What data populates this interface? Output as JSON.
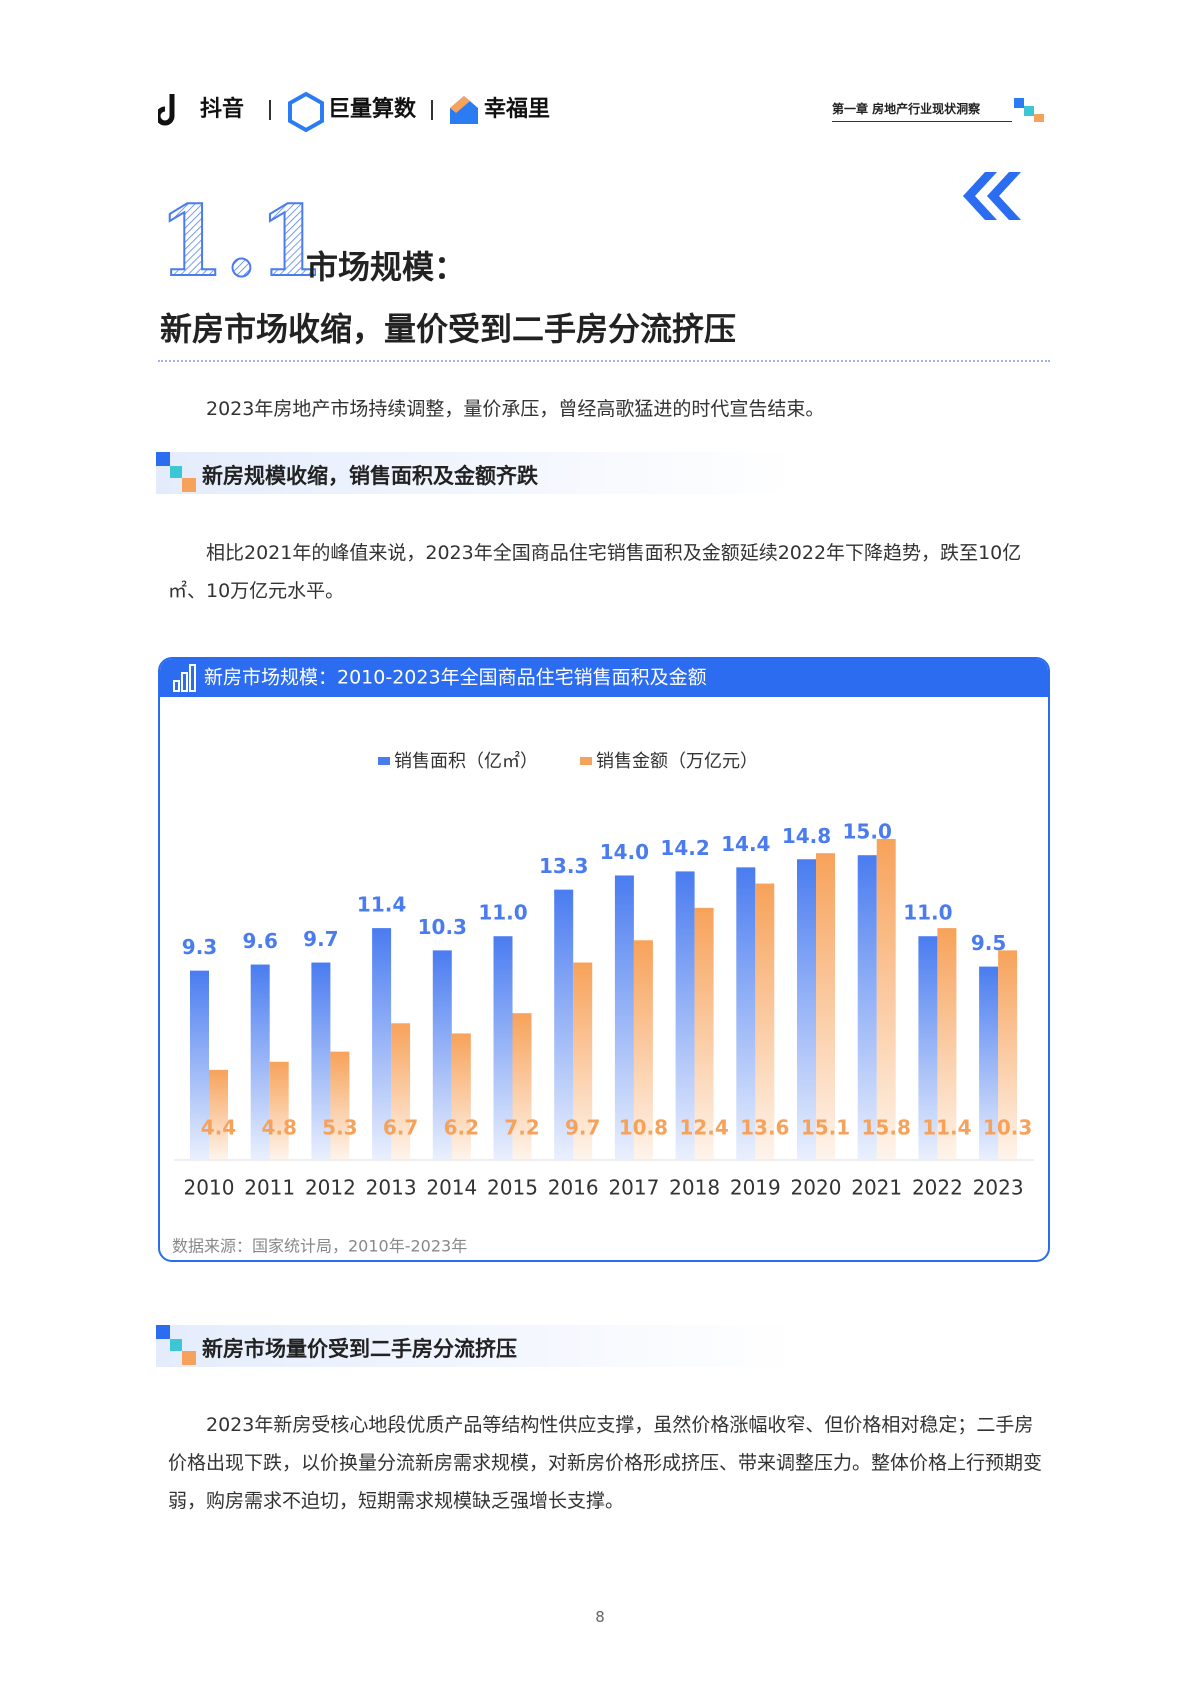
{
  "header": {
    "logos": [
      "抖音",
      "巨量算数",
      "幸福里"
    ],
    "chapter": "第一章  房地产行业现状洞察"
  },
  "section": {
    "number": "1.1",
    "title": "市场规模：",
    "subtitle": "新房市场收缩，量价受到二手房分流挤压"
  },
  "intro": "2023年房地产市场持续调整，量价承压，曾经高歌猛进的时代宣告结束。",
  "subsections": [
    {
      "title": "新房规模收缩，销售面积及金额齐跌",
      "paragraph": "相比2021年的峰值来说，2023年全国商品住宅销售面积及金额延续2022年下降趋势，跌至10亿㎡、10万亿元水平。"
    },
    {
      "title": "新房市场量价受到二手房分流挤压",
      "paragraph": "2023年新房受核心地段优质产品等结构性供应支撑，虽然价格涨幅收窄、但价格相对稳定；二手房价格出现下跌，以价换量分流新房需求规模，对新房价格形成挤压、带来调整压力。整体价格上行预期变弱，购房需求不迫切，短期需求规模缺乏强增长支撑。"
    }
  ],
  "chart_data": {
    "type": "bar",
    "title": "新房市场规模：2010-2023年全国商品住宅销售面积及金额",
    "categories": [
      "2010",
      "2011",
      "2012",
      "2013",
      "2014",
      "2015",
      "2016",
      "2017",
      "2018",
      "2019",
      "2020",
      "2021",
      "2022",
      "2023"
    ],
    "series": [
      {
        "name": "销售面积（亿㎡）",
        "color": "#4a7cf0",
        "values": [
          9.3,
          9.6,
          9.7,
          11.4,
          10.3,
          11.0,
          13.3,
          14.0,
          14.2,
          14.4,
          14.8,
          15.0,
          11.0,
          9.5
        ],
        "value_labels": [
          "9.3",
          "9.6",
          "9.7",
          "11.4",
          "10.3",
          "11.0",
          "13.3",
          "14.0",
          "14.2",
          "14.4",
          "14.8",
          "15.0",
          "11.0",
          "9.5"
        ]
      },
      {
        "name": "销售金额（万亿元）",
        "color": "#f7a25a",
        "values": [
          4.4,
          4.8,
          5.3,
          6.7,
          6.2,
          7.2,
          9.7,
          10.8,
          12.4,
          13.6,
          15.1,
          15.8,
          11.4,
          10.3
        ]
      }
    ],
    "source": "数据来源：国家统计局，2010年-2023年"
  },
  "page_number": "8"
}
